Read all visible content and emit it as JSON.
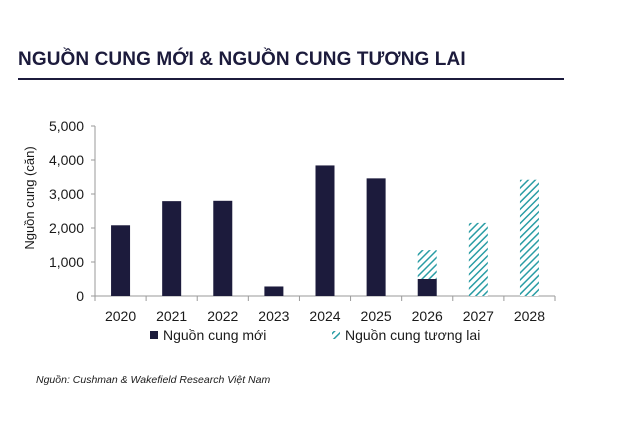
{
  "header": {
    "title": "NGUỒN CUNG MỚI & NGUỒN CUNG TƯƠNG LAI"
  },
  "footer": {
    "source": "Nguồn: Cushman & Wakefield Research Việt Nam"
  },
  "chart_data": {
    "type": "bar",
    "title": "",
    "xlabel": "",
    "ylabel": "Nguồn cung (căn)",
    "ylim": [
      0,
      5000
    ],
    "yticks": [
      0,
      1000,
      2000,
      3000,
      4000,
      5000
    ],
    "ytick_labels": [
      "0",
      "1,000",
      "2,000",
      "3,000",
      "4,000",
      "5,000"
    ],
    "grid": false,
    "stacked": true,
    "legend_position": "bottom",
    "categories": [
      "2020",
      "2021",
      "2022",
      "2023",
      "2024",
      "2025",
      "2026",
      "2027",
      "2028"
    ],
    "series": [
      {
        "name": "Nguồn cung mới",
        "color": "#1c1b3c",
        "pattern": "solid",
        "values": [
          2080,
          2790,
          2800,
          280,
          3840,
          3460,
          500,
          0,
          0
        ]
      },
      {
        "name": "Nguồn cung tương lai",
        "color": "#2a9da5",
        "pattern": "diagonal-hatch",
        "values": [
          0,
          0,
          0,
          0,
          0,
          0,
          850,
          2150,
          3420
        ]
      }
    ]
  }
}
